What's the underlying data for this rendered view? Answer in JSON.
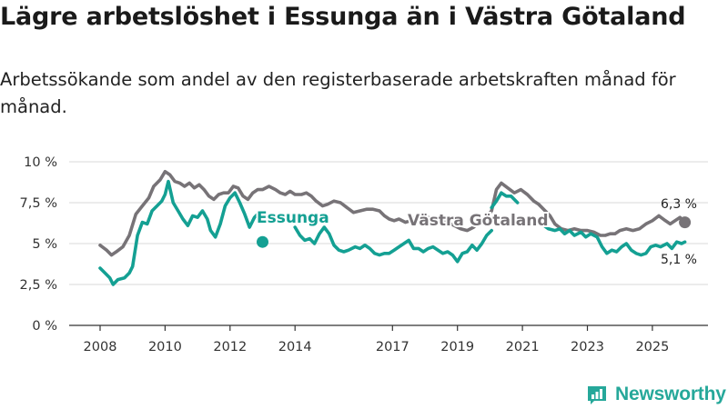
{
  "header": {
    "title": "Lägre arbetslöshet i Essunga än i Västra Götaland",
    "subtitle": "Arbetssökande som andel av den registerbaserade arbetskraften månad för månad."
  },
  "brand": {
    "name": "Newsworthy",
    "icon": "newsworthy-logo-icon",
    "color": "#26a89a"
  },
  "chart_data": {
    "type": "line",
    "title": "Lägre arbetslöshet i Essunga än i Västra Götaland",
    "xlabel": "",
    "ylabel": "",
    "ylim": [
      0,
      10
    ],
    "xlim": [
      2008,
      2026.5
    ],
    "grid": true,
    "y_ticks": [
      {
        "value": 0,
        "label": "0 %"
      },
      {
        "value": 2.5,
        "label": "2,5 %"
      },
      {
        "value": 5,
        "label": "5 %"
      },
      {
        "value": 7.5,
        "label": "7,5 %"
      },
      {
        "value": 10,
        "label": "10 %"
      }
    ],
    "x_ticks": [
      {
        "value": 2008,
        "label": "2008"
      },
      {
        "value": 2010,
        "label": "2010"
      },
      {
        "value": 2012,
        "label": "2012"
      },
      {
        "value": 2014,
        "label": "2014"
      },
      {
        "value": 2017,
        "label": "2017"
      },
      {
        "value": 2019,
        "label": "2019"
      },
      {
        "value": 2021,
        "label": "2021"
      },
      {
        "value": 2023,
        "label": "2023"
      },
      {
        "value": 2025,
        "label": "2025"
      }
    ],
    "series": [
      {
        "name": "Västra Götaland",
        "label": "Västra Götaland",
        "color": "#777377",
        "end_label": "6,3 %",
        "end_value": 6.3,
        "points": [
          [
            2008.0,
            4.9
          ],
          [
            2008.2,
            4.6
          ],
          [
            2008.35,
            4.3
          ],
          [
            2008.5,
            4.5
          ],
          [
            2008.7,
            4.8
          ],
          [
            2008.9,
            5.5
          ],
          [
            2009.1,
            6.8
          ],
          [
            2009.3,
            7.3
          ],
          [
            2009.5,
            7.8
          ],
          [
            2009.65,
            8.5
          ],
          [
            2009.85,
            8.9
          ],
          [
            2010.0,
            9.4
          ],
          [
            2010.15,
            9.2
          ],
          [
            2010.3,
            8.8
          ],
          [
            2010.45,
            8.7
          ],
          [
            2010.6,
            8.5
          ],
          [
            2010.75,
            8.7
          ],
          [
            2010.9,
            8.4
          ],
          [
            2011.05,
            8.6
          ],
          [
            2011.2,
            8.3
          ],
          [
            2011.35,
            7.9
          ],
          [
            2011.5,
            7.7
          ],
          [
            2011.65,
            8.0
          ],
          [
            2011.8,
            8.1
          ],
          [
            2011.95,
            8.1
          ],
          [
            2012.1,
            8.5
          ],
          [
            2012.25,
            8.4
          ],
          [
            2012.4,
            7.9
          ],
          [
            2012.55,
            7.7
          ],
          [
            2012.7,
            8.1
          ],
          [
            2012.85,
            8.3
          ],
          [
            2013.0,
            8.3
          ],
          [
            2013.2,
            8.5
          ],
          [
            2013.4,
            8.3
          ],
          [
            2013.55,
            8.1
          ],
          [
            2013.7,
            8.0
          ],
          [
            2013.85,
            8.2
          ],
          [
            2014.0,
            8.0
          ],
          [
            2014.2,
            8.0
          ],
          [
            2014.35,
            8.1
          ],
          [
            2014.5,
            7.9
          ],
          [
            2014.65,
            7.6
          ],
          [
            2014.85,
            7.3
          ],
          [
            2015.0,
            7.4
          ],
          [
            2015.2,
            7.6
          ],
          [
            2015.4,
            7.5
          ],
          [
            2015.6,
            7.2
          ],
          [
            2015.8,
            6.9
          ],
          [
            2016.0,
            7.0
          ],
          [
            2016.2,
            7.1
          ],
          [
            2016.4,
            7.1
          ],
          [
            2016.6,
            7.0
          ],
          [
            2016.75,
            6.7
          ],
          [
            2016.9,
            6.5
          ],
          [
            2017.05,
            6.4
          ],
          [
            2017.2,
            6.5
          ],
          [
            2017.4,
            6.3
          ],
          [
            2017.55,
            6.4
          ],
          [
            2017.7,
            6.6
          ],
          [
            2017.9,
            6.5
          ],
          [
            2018.1,
            6.6
          ],
          [
            2018.3,
            6.4
          ],
          [
            2018.5,
            6.4
          ],
          [
            2018.7,
            6.3
          ],
          [
            2018.9,
            6.1
          ],
          [
            2019.1,
            5.9
          ],
          [
            2019.3,
            5.8
          ],
          [
            2019.5,
            6.0
          ],
          [
            2019.7,
            6.4
          ],
          [
            2019.85,
            6.5
          ],
          [
            2020.05,
            7.0
          ],
          [
            2020.2,
            8.3
          ],
          [
            2020.35,
            8.7
          ],
          [
            2020.55,
            8.4
          ],
          [
            2020.75,
            8.1
          ],
          [
            2020.95,
            8.3
          ],
          [
            2021.15,
            8.0
          ],
          [
            2021.35,
            7.6
          ],
          [
            2021.5,
            7.4
          ],
          [
            2021.7,
            7.0
          ],
          [
            2021.85,
            6.7
          ],
          [
            2022.0,
            6.2
          ],
          [
            2022.2,
            5.9
          ],
          [
            2022.4,
            5.8
          ],
          [
            2022.6,
            5.9
          ],
          [
            2022.8,
            5.8
          ],
          [
            2023.0,
            5.8
          ],
          [
            2023.2,
            5.7
          ],
          [
            2023.4,
            5.5
          ],
          [
            2023.55,
            5.5
          ],
          [
            2023.7,
            5.6
          ],
          [
            2023.85,
            5.6
          ],
          [
            2024.0,
            5.8
          ],
          [
            2024.2,
            5.9
          ],
          [
            2024.4,
            5.8
          ],
          [
            2024.6,
            5.9
          ],
          [
            2024.8,
            6.2
          ],
          [
            2025.0,
            6.4
          ],
          [
            2025.2,
            6.7
          ],
          [
            2025.4,
            6.4
          ],
          [
            2025.55,
            6.2
          ],
          [
            2025.7,
            6.4
          ],
          [
            2025.85,
            6.6
          ],
          [
            2026.0,
            6.3
          ]
        ]
      },
      {
        "name": "Essunga",
        "label": "Essunga",
        "color": "#14a093",
        "end_label": "5,1 %",
        "end_value": 5.1,
        "points": [
          [
            2008.0,
            3.5
          ],
          [
            2008.15,
            3.2
          ],
          [
            2008.3,
            2.9
          ],
          [
            2008.4,
            2.5
          ],
          [
            2008.55,
            2.8
          ],
          [
            2008.75,
            2.9
          ],
          [
            2008.9,
            3.2
          ],
          [
            2009.0,
            3.6
          ],
          [
            2009.15,
            5.5
          ],
          [
            2009.3,
            6.3
          ],
          [
            2009.45,
            6.2
          ],
          [
            2009.6,
            7.0
          ],
          [
            2009.75,
            7.3
          ],
          [
            2009.9,
            7.6
          ],
          [
            2010.0,
            8.0
          ],
          [
            2010.1,
            8.8
          ],
          [
            2010.25,
            7.5
          ],
          [
            2010.4,
            7.0
          ],
          [
            2010.55,
            6.5
          ],
          [
            2010.7,
            6.1
          ],
          [
            2010.85,
            6.7
          ],
          [
            2011.0,
            6.6
          ],
          [
            2011.15,
            7.0
          ],
          [
            2011.3,
            6.5
          ],
          [
            2011.4,
            5.8
          ],
          [
            2011.55,
            5.4
          ],
          [
            2011.7,
            6.2
          ],
          [
            2011.85,
            7.3
          ],
          [
            2012.0,
            7.8
          ],
          [
            2012.15,
            8.1
          ],
          [
            2012.3,
            7.5
          ],
          [
            2012.45,
            6.8
          ],
          [
            2012.6,
            6.0
          ],
          [
            2012.75,
            6.6
          ],
          [
            2012.9,
            6.9
          ],
          [
            2013.0,
            6.6
          ]
        ]
      },
      {
        "name": "Essunga",
        "label": "",
        "color": "#14a093",
        "points": [
          [
            2014.0,
            6.0
          ],
          [
            2014.15,
            5.5
          ],
          [
            2014.3,
            5.2
          ],
          [
            2014.45,
            5.3
          ],
          [
            2014.6,
            5.0
          ],
          [
            2014.75,
            5.6
          ],
          [
            2014.9,
            6.0
          ],
          [
            2015.05,
            5.6
          ],
          [
            2015.2,
            4.9
          ],
          [
            2015.35,
            4.6
          ],
          [
            2015.5,
            4.5
          ],
          [
            2015.65,
            4.6
          ],
          [
            2015.85,
            4.8
          ],
          [
            2016.0,
            4.7
          ],
          [
            2016.15,
            4.9
          ],
          [
            2016.3,
            4.7
          ],
          [
            2016.45,
            4.4
          ],
          [
            2016.6,
            4.3
          ],
          [
            2016.75,
            4.4
          ],
          [
            2016.9,
            4.4
          ],
          [
            2017.05,
            4.6
          ],
          [
            2017.2,
            4.8
          ],
          [
            2017.35,
            5.0
          ],
          [
            2017.5,
            5.2
          ],
          [
            2017.65,
            4.7
          ],
          [
            2017.8,
            4.7
          ],
          [
            2017.95,
            4.5
          ],
          [
            2018.1,
            4.7
          ],
          [
            2018.25,
            4.8
          ],
          [
            2018.4,
            4.6
          ],
          [
            2018.55,
            4.4
          ],
          [
            2018.7,
            4.5
          ],
          [
            2018.85,
            4.3
          ],
          [
            2019.0,
            3.9
          ],
          [
            2019.15,
            4.4
          ],
          [
            2019.3,
            4.5
          ],
          [
            2019.45,
            4.9
          ],
          [
            2019.6,
            4.6
          ],
          [
            2019.75,
            5.0
          ],
          [
            2019.9,
            5.5
          ],
          [
            2020.05,
            5.8
          ]
        ]
      },
      {
        "name": "Essunga",
        "label": "",
        "color": "#14a093",
        "points": [
          [
            2020.85,
            6.5
          ],
          [
            2021.0,
            6.6
          ],
          [
            2021.15,
            6.4
          ],
          [
            2021.3,
            6.6
          ],
          [
            2021.45,
            6.5
          ],
          [
            2021.6,
            6.2
          ],
          [
            2021.8,
            5.9
          ],
          [
            2022.0,
            5.8
          ],
          [
            2022.15,
            5.9
          ],
          [
            2022.3,
            5.6
          ],
          [
            2022.45,
            5.8
          ],
          [
            2022.6,
            5.5
          ],
          [
            2022.8,
            5.7
          ],
          [
            2022.95,
            5.4
          ],
          [
            2023.1,
            5.6
          ],
          [
            2023.3,
            5.4
          ],
          [
            2023.45,
            4.8
          ],
          [
            2023.6,
            4.4
          ],
          [
            2023.75,
            4.6
          ],
          [
            2023.9,
            4.5
          ],
          [
            2024.05,
            4.8
          ],
          [
            2024.2,
            5.0
          ],
          [
            2024.35,
            4.6
          ],
          [
            2024.5,
            4.4
          ],
          [
            2024.65,
            4.3
          ],
          [
            2024.8,
            4.4
          ],
          [
            2024.95,
            4.8
          ],
          [
            2025.1,
            4.9
          ],
          [
            2025.25,
            4.8
          ],
          [
            2025.45,
            5.0
          ],
          [
            2025.6,
            4.7
          ],
          [
            2025.75,
            5.1
          ],
          [
            2025.9,
            5.0
          ],
          [
            2026.0,
            5.1
          ]
        ]
      },
      {
        "name": "Essunga",
        "label": "",
        "color": "#14a093",
        "points": [
          [
            2020.05,
            7.2
          ],
          [
            2020.2,
            7.6
          ],
          [
            2020.35,
            8.1
          ],
          [
            2020.5,
            7.9
          ],
          [
            2020.65,
            7.9
          ],
          [
            2020.85,
            7.5
          ]
        ]
      }
    ]
  }
}
